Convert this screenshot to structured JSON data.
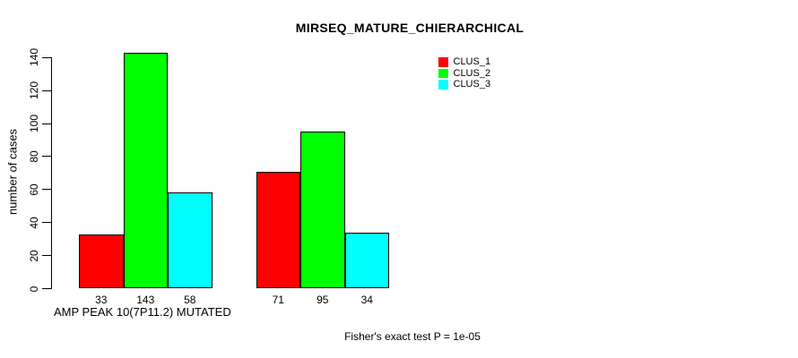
{
  "title": "MIRSEQ_MATURE_CHIERARCHICAL",
  "y_axis": {
    "label": "number of cases",
    "ticks": [
      0,
      20,
      40,
      60,
      80,
      100,
      120,
      140
    ]
  },
  "x_axis": {
    "label": "AMP PEAK 10(7P11.2) MUTATED"
  },
  "footer": "Fisher's exact test P = 1e-05",
  "legend": {
    "items": [
      {
        "label": "CLUS_1",
        "color": "#ff0000"
      },
      {
        "label": "CLUS_2",
        "color": "#00ff00"
      },
      {
        "label": "CLUS_3",
        "color": "#00ffff"
      }
    ]
  },
  "chart_data": {
    "type": "bar",
    "title": "MIRSEQ_MATURE_CHIERARCHICAL",
    "xlabel": "AMP PEAK 10(7P11.2) MUTATED",
    "ylabel": "number of cases",
    "ylim": [
      0,
      145
    ],
    "yticks": [
      0,
      20,
      40,
      60,
      80,
      100,
      120,
      140
    ],
    "grid": false,
    "legend_position": "top-right",
    "group_count": 2,
    "series": [
      {
        "name": "CLUS_1",
        "color": "#ff0000",
        "values": [
          33,
          71
        ]
      },
      {
        "name": "CLUS_2",
        "color": "#00ff00",
        "values": [
          143,
          95
        ]
      },
      {
        "name": "CLUS_3",
        "color": "#00ffff",
        "values": [
          58,
          34
        ]
      }
    ],
    "bar_labels": [
      [
        33,
        143,
        58
      ],
      [
        71,
        95,
        34
      ]
    ],
    "annotation": "Fisher's exact test P = 1e-05"
  }
}
